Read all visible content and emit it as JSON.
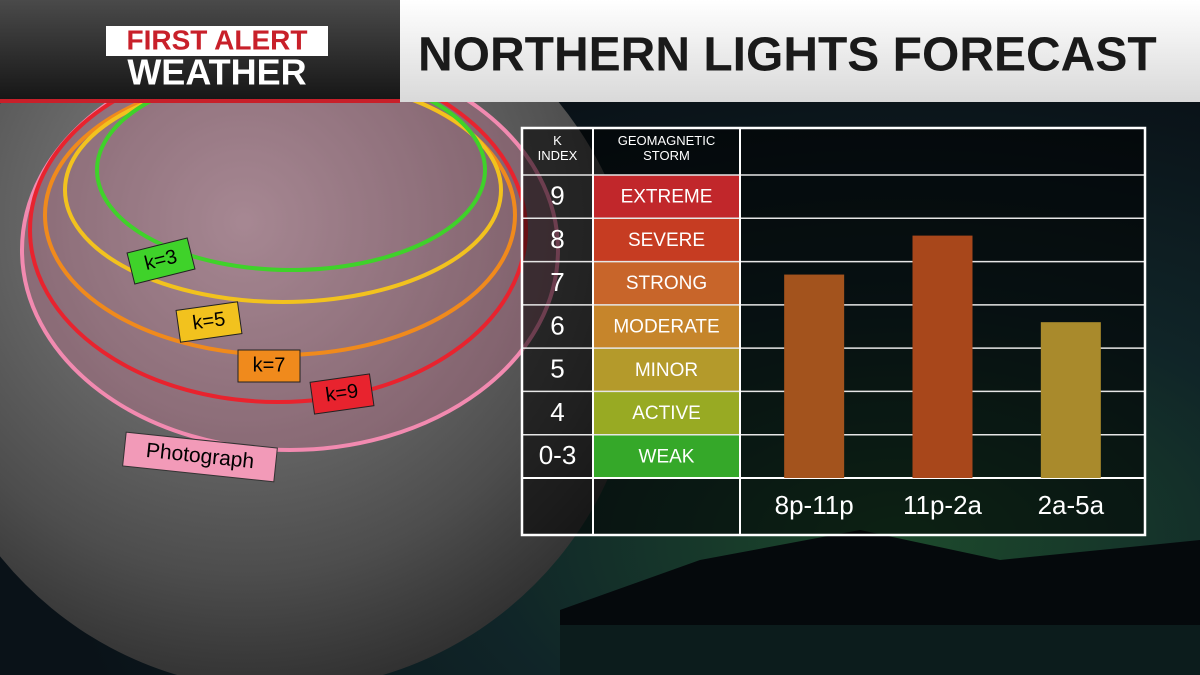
{
  "header": {
    "brand_top": "FIRST ALERT",
    "brand_bottom": "WEATHER",
    "title": "NORTHERN LIGHTS FORECAST"
  },
  "map": {
    "rings": [
      "k=3",
      "k=5",
      "k=7",
      "k=9"
    ],
    "photograph": "Photograph"
  },
  "chart_data": {
    "type": "bar",
    "column_headers": [
      "K INDEX",
      "GEOMAGNETIC STORM"
    ],
    "categories": [
      "8p-11p",
      "11p-2a",
      "2a-5a"
    ],
    "values": [
      7.2,
      8.1,
      6.1
    ],
    "colors": [
      "#a3531d",
      "#a8471b",
      "#a98a2c"
    ],
    "ylim": [
      2.5,
      9.5
    ],
    "yticks": [
      9,
      8,
      7,
      6,
      5,
      4,
      {
        "value": 3,
        "label": "0-3"
      }
    ],
    "storm_levels": [
      "EXTREME",
      "SEVERE",
      "STRONG",
      "MODERATE",
      "MINOR",
      "ACTIVE",
      "WEAK"
    ],
    "storm_colors": [
      "#c1272b",
      "#c63c22",
      "#c8652a",
      "#c6852b",
      "#b49a2b",
      "#98aa23",
      "#35a829"
    ]
  }
}
